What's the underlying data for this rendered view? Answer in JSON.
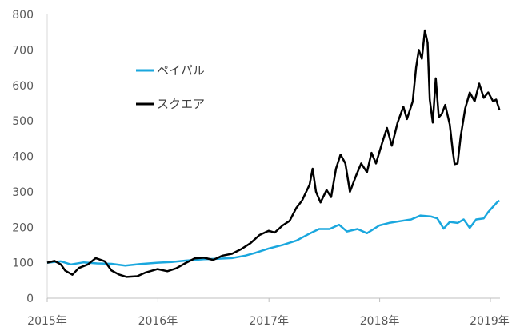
{
  "chart_data": {
    "type": "line",
    "x_tick_labels": [
      "2015年",
      "2016年",
      "2017年",
      "2018年",
      "2019年"
    ],
    "x_range": [
      "2015-01-01",
      "2019-01-31"
    ],
    "y_tick_labels": [
      "0",
      "100",
      "200",
      "300",
      "400",
      "500",
      "600",
      "700",
      "800"
    ],
    "ylim": [
      0,
      800
    ],
    "grid": false,
    "legend_position": "upper-left",
    "series": [
      {
        "name": "ペイパル",
        "color": "#1aa7de",
        "points": [
          [
            "2015-01-01",
            100
          ],
          [
            "2015-02-15",
            104
          ],
          [
            "2015-03-20",
            95
          ],
          [
            "2015-05-01",
            101
          ],
          [
            "2015-06-15",
            98
          ],
          [
            "2015-08-01",
            97
          ],
          [
            "2015-09-15",
            92
          ],
          [
            "2015-11-01",
            96
          ],
          [
            "2015-12-31",
            100
          ],
          [
            "2016-02-15",
            102
          ],
          [
            "2016-04-01",
            106
          ],
          [
            "2016-06-01",
            110
          ],
          [
            "2016-07-15",
            111
          ],
          [
            "2016-09-01",
            113
          ],
          [
            "2016-10-15",
            120
          ],
          [
            "2016-11-15",
            127
          ],
          [
            "2016-12-31",
            140
          ],
          [
            "2017-02-15",
            150
          ],
          [
            "2017-04-01",
            162
          ],
          [
            "2017-05-15",
            182
          ],
          [
            "2017-06-15",
            195
          ],
          [
            "2017-07-20",
            195
          ],
          [
            "2017-08-20",
            207
          ],
          [
            "2017-09-15",
            188
          ],
          [
            "2017-10-20",
            195
          ],
          [
            "2017-11-20",
            183
          ],
          [
            "2017-12-31",
            205
          ],
          [
            "2018-02-01",
            212
          ],
          [
            "2018-03-15",
            218
          ],
          [
            "2018-04-15",
            222
          ],
          [
            "2018-05-15",
            233
          ],
          [
            "2018-06-20",
            230
          ],
          [
            "2018-07-10",
            225
          ],
          [
            "2018-07-31",
            196
          ],
          [
            "2018-08-20",
            215
          ],
          [
            "2018-09-15",
            212
          ],
          [
            "2018-10-05",
            222
          ],
          [
            "2018-10-25",
            198
          ],
          [
            "2018-11-15",
            222
          ],
          [
            "2018-12-10",
            225
          ],
          [
            "2018-12-25",
            243
          ],
          [
            "2019-01-10",
            258
          ],
          [
            "2019-01-25",
            272
          ],
          [
            "2019-01-31",
            275
          ]
        ]
      },
      {
        "name": "スクエア",
        "color": "#000000",
        "points": [
          [
            "2015-01-01",
            100
          ],
          [
            "2015-01-25",
            105
          ],
          [
            "2015-02-15",
            95
          ],
          [
            "2015-03-01",
            78
          ],
          [
            "2015-03-25",
            66
          ],
          [
            "2015-04-15",
            85
          ],
          [
            "2015-05-15",
            95
          ],
          [
            "2015-06-10",
            113
          ],
          [
            "2015-07-10",
            104
          ],
          [
            "2015-08-01",
            78
          ],
          [
            "2015-08-25",
            67
          ],
          [
            "2015-09-20",
            60
          ],
          [
            "2015-10-25",
            62
          ],
          [
            "2015-11-20",
            72
          ],
          [
            "2015-12-31",
            82
          ],
          [
            "2016-02-01",
            76
          ],
          [
            "2016-03-01",
            84
          ],
          [
            "2016-04-01",
            99
          ],
          [
            "2016-05-01",
            112
          ],
          [
            "2016-06-01",
            114
          ],
          [
            "2016-07-01",
            108
          ],
          [
            "2016-08-01",
            120
          ],
          [
            "2016-09-01",
            125
          ],
          [
            "2016-10-01",
            138
          ],
          [
            "2016-11-01",
            155
          ],
          [
            "2016-12-01",
            178
          ],
          [
            "2016-12-31",
            190
          ],
          [
            "2017-01-20",
            185
          ],
          [
            "2017-02-15",
            205
          ],
          [
            "2017-03-10",
            218
          ],
          [
            "2017-04-01",
            254
          ],
          [
            "2017-04-20",
            275
          ],
          [
            "2017-05-15",
            320
          ],
          [
            "2017-05-25",
            365
          ],
          [
            "2017-06-05",
            300
          ],
          [
            "2017-06-20",
            270
          ],
          [
            "2017-07-10",
            305
          ],
          [
            "2017-07-25",
            285
          ],
          [
            "2017-08-10",
            365
          ],
          [
            "2017-08-25",
            405
          ],
          [
            "2017-09-10",
            380
          ],
          [
            "2017-09-25",
            300
          ],
          [
            "2017-10-15",
            345
          ],
          [
            "2017-11-01",
            380
          ],
          [
            "2017-11-20",
            355
          ],
          [
            "2017-12-05",
            410
          ],
          [
            "2017-12-20",
            380
          ],
          [
            "2018-01-10",
            440
          ],
          [
            "2018-01-25",
            480
          ],
          [
            "2018-02-10",
            430
          ],
          [
            "2018-03-01",
            495
          ],
          [
            "2018-03-20",
            540
          ],
          [
            "2018-04-01",
            505
          ],
          [
            "2018-04-20",
            555
          ],
          [
            "2018-05-01",
            650
          ],
          [
            "2018-05-10",
            700
          ],
          [
            "2018-05-20",
            675
          ],
          [
            "2018-05-30",
            755
          ],
          [
            "2018-06-08",
            720
          ],
          [
            "2018-06-15",
            560
          ],
          [
            "2018-06-25",
            495
          ],
          [
            "2018-07-05",
            620
          ],
          [
            "2018-07-15",
            510
          ],
          [
            "2018-07-25",
            520
          ],
          [
            "2018-08-05",
            545
          ],
          [
            "2018-08-20",
            490
          ],
          [
            "2018-08-30",
            415
          ],
          [
            "2018-09-05",
            378
          ],
          [
            "2018-09-15",
            380
          ],
          [
            "2018-09-25",
            455
          ],
          [
            "2018-10-10",
            535
          ],
          [
            "2018-10-25",
            580
          ],
          [
            "2018-11-10",
            555
          ],
          [
            "2018-11-25",
            605
          ],
          [
            "2018-12-10",
            565
          ],
          [
            "2018-12-25",
            580
          ],
          [
            "2019-01-10",
            555
          ],
          [
            "2019-01-20",
            560
          ],
          [
            "2019-01-31",
            530
          ]
        ]
      }
    ]
  }
}
